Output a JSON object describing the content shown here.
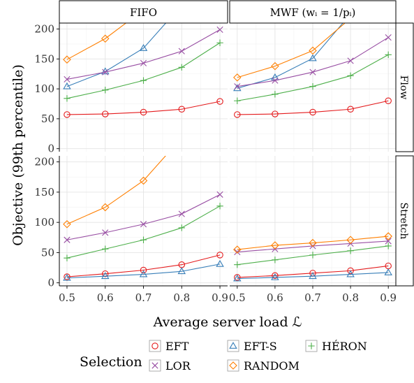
{
  "chart_data": {
    "type": "line",
    "x": [
      0.5,
      0.6,
      0.7,
      0.8,
      0.9
    ],
    "x_tick_labels": [
      "0.5",
      "0.6",
      "0.7",
      "0.8",
      "0.9"
    ],
    "xlim": [
      0.48,
      0.92
    ],
    "ylim": [
      -5,
      210
    ],
    "y_ticks": [
      0,
      50,
      100,
      150,
      200
    ],
    "y_tick_labels": [
      "0",
      "50",
      "100",
      "150",
      "200"
    ],
    "xlabel": "Average server load ℒ",
    "ylabel": "Objective (99th percentile)",
    "column_strips": [
      "FIFO",
      "MWF (wᵢ = 1/pᵢ)"
    ],
    "row_strips": [
      "Flow",
      "Stretch"
    ],
    "legend": {
      "title": "Selection",
      "position": "bottom",
      "entries": [
        {
          "label": "EFT",
          "key": "EFT"
        },
        {
          "label": "EFT-S",
          "key": "EFT-S"
        },
        {
          "label": "HÉRON",
          "key": "HERON"
        },
        {
          "label": "LOR",
          "key": "LOR"
        },
        {
          "label": "RANDOM",
          "key": "RANDOM"
        }
      ]
    },
    "styles": {
      "EFT": {
        "color": "#e41a1c",
        "marker": "circle"
      },
      "EFT-S": {
        "color": "#377eb8",
        "marker": "triangle"
      },
      "HERON": {
        "color": "#4daf4a",
        "marker": "plus"
      },
      "LOR": {
        "color": "#984ea3",
        "marker": "cross"
      },
      "RANDOM": {
        "color": "#ff7f00",
        "marker": "diamond"
      }
    },
    "panels": [
      {
        "column": "FIFO",
        "row": "Flow",
        "series": [
          {
            "key": "EFT",
            "values": [
              57,
              58,
              61,
              66,
              79
            ]
          },
          {
            "key": "EFT-S",
            "values": [
              104,
              129,
              168,
              240,
              null
            ]
          },
          {
            "key": "HERON",
            "values": [
              84,
              98,
              114,
              136,
              177
            ]
          },
          {
            "key": "LOR",
            "values": [
              116,
              128,
              143,
              163,
              199
            ]
          },
          {
            "key": "RANDOM",
            "values": [
              149,
              184,
              232,
              null,
              null
            ]
          }
        ]
      },
      {
        "column": "MWF",
        "row": "Flow",
        "series": [
          {
            "key": "EFT",
            "values": [
              57,
              58,
              61,
              66,
              80
            ]
          },
          {
            "key": "EFT-S",
            "values": [
              101,
              119,
              151,
              225,
              null
            ]
          },
          {
            "key": "HERON",
            "values": [
              80,
              91,
              104,
              122,
              157
            ]
          },
          {
            "key": "LOR",
            "values": [
              104,
              114,
              128,
              147,
              186
            ]
          },
          {
            "key": "RANDOM",
            "values": [
              119,
              138,
              164,
              218,
              null
            ]
          }
        ]
      },
      {
        "column": "FIFO",
        "row": "Stretch",
        "series": [
          {
            "key": "EFT",
            "values": [
              10,
              15,
              21,
              30,
              46
            ]
          },
          {
            "key": "EFT-S",
            "values": [
              8,
              11,
              14,
              19,
              31
            ]
          },
          {
            "key": "HERON",
            "values": [
              41,
              56,
              71,
              91,
              127
            ]
          },
          {
            "key": "LOR",
            "values": [
              71,
              83,
              97,
              114,
              146
            ]
          },
          {
            "key": "RANDOM",
            "values": [
              97,
              125,
              169,
              240,
              null
            ]
          }
        ]
      },
      {
        "column": "MWF",
        "row": "Stretch",
        "series": [
          {
            "key": "EFT",
            "values": [
              9,
              12,
              16,
              20,
              28
            ]
          },
          {
            "key": "EFT-S",
            "values": [
              7,
              9,
              11,
              14,
              17
            ]
          },
          {
            "key": "HERON",
            "values": [
              30,
              38,
              46,
              53,
              61
            ]
          },
          {
            "key": "LOR",
            "values": [
              51,
              56,
              61,
              65,
              69
            ]
          },
          {
            "key": "RANDOM",
            "values": [
              55,
              62,
              66,
              71,
              77
            ]
          }
        ]
      }
    ]
  }
}
